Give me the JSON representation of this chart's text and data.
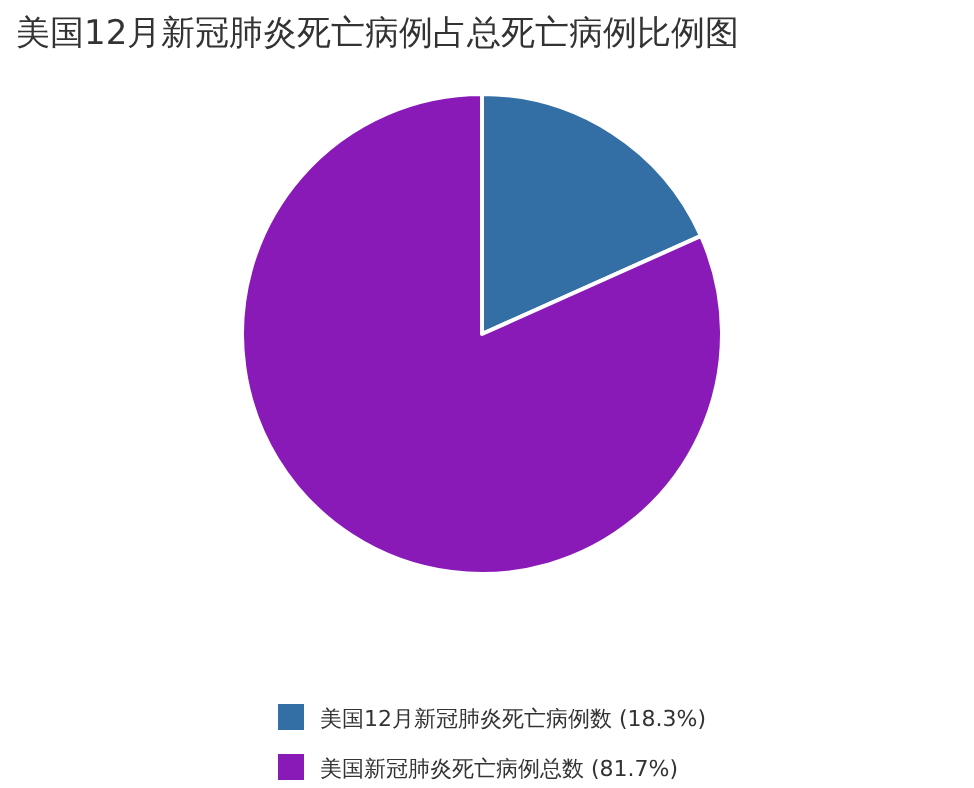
{
  "chart_data": {
    "type": "pie",
    "title": "美国12月新冠肺炎死亡病例占总死亡病例比例图",
    "categories": [
      "美国12月新冠肺炎死亡病例数 (18.3%)",
      "美国新冠肺炎死亡病例总数 (81.7%)"
    ],
    "values": [
      18.3,
      81.7
    ],
    "colors": [
      "#336ea5",
      "#8a1ab8"
    ],
    "legend": "bottom"
  }
}
